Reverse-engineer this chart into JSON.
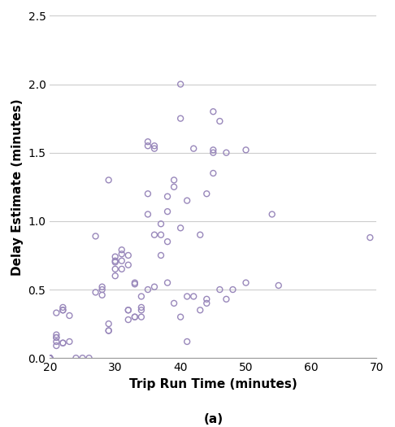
{
  "x": [
    20,
    20,
    20,
    20,
    20,
    20,
    20,
    21,
    21,
    21,
    21,
    21,
    21,
    22,
    22,
    22,
    22,
    22,
    23,
    23,
    24,
    25,
    26,
    27,
    27,
    28,
    28,
    28,
    29,
    29,
    29,
    29,
    30,
    30,
    30,
    30,
    30,
    31,
    31,
    31,
    31,
    32,
    32,
    32,
    32,
    32,
    33,
    33,
    33,
    33,
    34,
    34,
    34,
    34,
    35,
    35,
    35,
    35,
    35,
    36,
    36,
    36,
    36,
    37,
    37,
    37,
    38,
    38,
    38,
    38,
    39,
    39,
    39,
    40,
    40,
    40,
    40,
    41,
    41,
    41,
    42,
    42,
    43,
    43,
    44,
    44,
    44,
    45,
    45,
    45,
    45,
    46,
    46,
    47,
    47,
    48,
    50,
    50,
    54,
    55,
    69
  ],
  "y": [
    0.0,
    0.0,
    0.0,
    0.0,
    0.0,
    0.0,
    0.0,
    0.09,
    0.12,
    0.15,
    0.15,
    0.17,
    0.33,
    0.35,
    0.35,
    0.37,
    0.11,
    0.11,
    0.31,
    0.12,
    0.0,
    0.0,
    0.0,
    0.89,
    0.48,
    0.52,
    0.5,
    0.46,
    1.3,
    0.25,
    0.2,
    0.2,
    0.65,
    0.7,
    0.71,
    0.74,
    0.6,
    0.65,
    0.71,
    0.76,
    0.79,
    0.68,
    0.75,
    0.35,
    0.35,
    0.28,
    0.55,
    0.54,
    0.3,
    0.3,
    0.45,
    0.35,
    0.3,
    0.37,
    1.55,
    1.58,
    1.05,
    1.2,
    0.5,
    1.53,
    1.55,
    0.9,
    0.52,
    0.75,
    0.9,
    0.98,
    1.18,
    1.07,
    0.85,
    0.55,
    1.25,
    1.3,
    0.4,
    2.0,
    1.75,
    0.95,
    0.3,
    1.15,
    0.45,
    0.12,
    1.53,
    0.45,
    0.9,
    0.35,
    1.2,
    0.43,
    0.4,
    1.8,
    1.52,
    1.5,
    1.35,
    0.5,
    1.73,
    0.43,
    1.5,
    0.5,
    1.52,
    0.55,
    1.05,
    0.53,
    0.88
  ],
  "marker_edge_color": "#9988BB",
  "marker_size": 5,
  "marker_linewidth": 1.0,
  "xlabel": "Trip Run Time (minutes)",
  "ylabel": "Delay Estimate (minutes)",
  "subtitle": "(a)",
  "xlim": [
    20,
    70
  ],
  "ylim": [
    0,
    2.5
  ],
  "xticks": [
    20,
    30,
    40,
    50,
    60,
    70
  ],
  "yticks": [
    0.0,
    0.5,
    1.0,
    1.5,
    2.0,
    2.5
  ],
  "grid_color": "#CCCCCC",
  "background_color": "#FFFFFF",
  "xlabel_fontsize": 11,
  "ylabel_fontsize": 11,
  "tick_fontsize": 10,
  "subtitle_fontsize": 11
}
